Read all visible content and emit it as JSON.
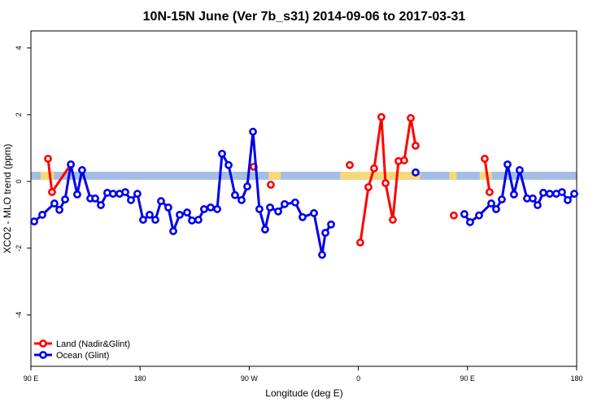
{
  "chart_data": {
    "type": "line",
    "title": "10N-15N June (Ver 7b_s31)   2014-09-06 to 2017-03-31",
    "x_label": "Longitude (deg E)",
    "y_label": "XCO2 - MLO trend (ppm)",
    "xlim": [
      90,
      540
    ],
    "ylim": [
      -5.54,
      4.51
    ],
    "xticks": [
      {
        "value": 90,
        "label": "90 E"
      },
      180,
      {
        "value": 270,
        "label": "90 W"
      },
      {
        "value": 360,
        "label": "0"
      },
      {
        "value": 450,
        "label": "90 E"
      },
      {
        "value": 540,
        "label": "180"
      }
    ],
    "yticks": [
      -4,
      -2,
      0,
      2,
      4
    ],
    "band": {
      "range": [
        0.05,
        0.29
      ],
      "color": "#a3bde3"
    },
    "highlight_ranges": {
      "color": "#f7d97a",
      "ranges": [
        [
          98,
          109
        ],
        [
          286,
          296
        ],
        [
          345,
          411
        ],
        [
          435,
          441
        ],
        [
          460,
          470
        ]
      ]
    },
    "legend": "bottom-left",
    "series": [
      {
        "name": "Land (Nadir&Glint)",
        "color": "#ff0000",
        "x": [
          104.1,
          107.4,
          122.9,
          null,
          273.7,
          null,
          287.8,
          null,
          352.9,
          null,
          361.6,
          368.3,
          373.0,
          379.0,
          382.4,
          388.4,
          393.1,
          397.8,
          403.2,
          407.2,
          null,
          438.7,
          null,
          464.2,
          468.2
        ],
        "values": [
          0.68,
          -0.32,
          0.51,
          null,
          0.44,
          null,
          -0.1,
          null,
          0.49,
          null,
          -1.83,
          -0.17,
          0.39,
          1.93,
          -0.05,
          -1.15,
          0.61,
          0.63,
          1.9,
          1.07,
          null,
          -1.02,
          null,
          0.68,
          -0.32
        ]
      },
      {
        "name": "Ocean (Glint)",
        "color": "#0000ee",
        "x": [
          92.7,
          99.4,
          109.4,
          113.5,
          118.2,
          122.9,
          128.2,
          132.2,
          139.0,
          143.0,
          147.7,
          153.0,
          157.7,
          163.1,
          167.8,
          172.5,
          177.8,
          182.5,
          187.9,
          192.6,
          197.3,
          203.3,
          207.4,
          212.7,
          218.8,
          222.8,
          228.1,
          232.8,
          238.2,
          243.6,
          247.6,
          253.0,
          258.3,
          263.7,
          268.4,
          273.1,
          278.4,
          283.1,
          287.2,
          293.9,
          299.2,
          307.9,
          314.0,
          323.4,
          330.1,
          332.8,
          337.5,
          null,
          407.2,
          null,
          447.4,
          452.1,
          459.5,
          469.6,
          473.6,
          478.3,
          483.0,
          488.3,
          493.0,
          499.1,
          503.8,
          507.8,
          512.5,
          517.8,
          523.2,
          527.9,
          532.6,
          538.0
        ],
        "values": [
          -1.2,
          -1.0,
          -0.66,
          -0.85,
          -0.54,
          0.51,
          -0.39,
          0.34,
          -0.51,
          -0.51,
          -0.71,
          -0.34,
          -0.37,
          -0.37,
          -0.32,
          -0.56,
          -0.37,
          -1.15,
          -1.0,
          -1.15,
          -0.59,
          -0.78,
          -1.49,
          -1.0,
          -0.93,
          -1.17,
          -1.15,
          -0.83,
          -0.78,
          -0.83,
          0.83,
          0.49,
          -0.41,
          -0.56,
          -0.15,
          1.49,
          -0.83,
          -1.44,
          -0.78,
          -0.9,
          -0.68,
          -0.63,
          -1.07,
          -0.95,
          -2.2,
          -1.54,
          -1.29,
          null,
          0.27,
          null,
          -0.98,
          -1.22,
          -1.02,
          -0.66,
          -0.83,
          -0.54,
          0.51,
          -0.39,
          0.34,
          -0.51,
          -0.51,
          -0.71,
          -0.34,
          -0.37,
          -0.37,
          -0.32,
          -0.56,
          -0.37
        ]
      }
    ]
  }
}
